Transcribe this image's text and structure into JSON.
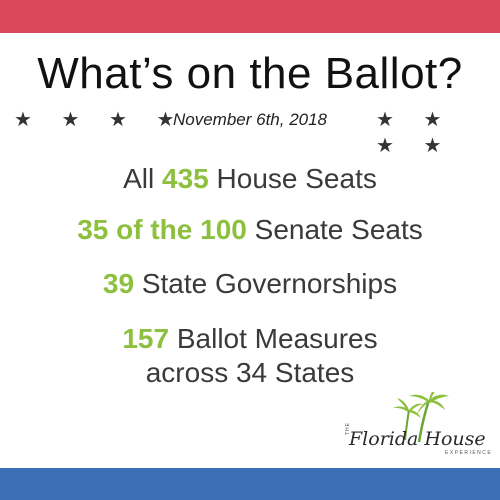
{
  "colors": {
    "red": "#d9485a",
    "blue": "#3d6fb6",
    "green": "#8dc03f"
  },
  "title": "What’s on the Ballot?",
  "date": "November 6th, 2018",
  "stars": {
    "left": "★ ★ ★ ★",
    "right": "★ ★ ★ ★"
  },
  "items": [
    {
      "pre": "All ",
      "num": "435",
      "post": " House Seats"
    },
    {
      "pre": "",
      "num": "35 of the 100",
      "post": " Senate Seats"
    },
    {
      "pre": "",
      "num": "39",
      "post": " State Governorships"
    },
    {
      "pre": "",
      "num": "157",
      "post": " Ballot Measures"
    },
    {
      "pre": "",
      "num": "",
      "post": "across 34 States"
    }
  ],
  "logo": {
    "the": "THE",
    "name": "Florida House",
    "sub": "EXPERIENCE",
    "icon": "palm-tree-icon"
  }
}
